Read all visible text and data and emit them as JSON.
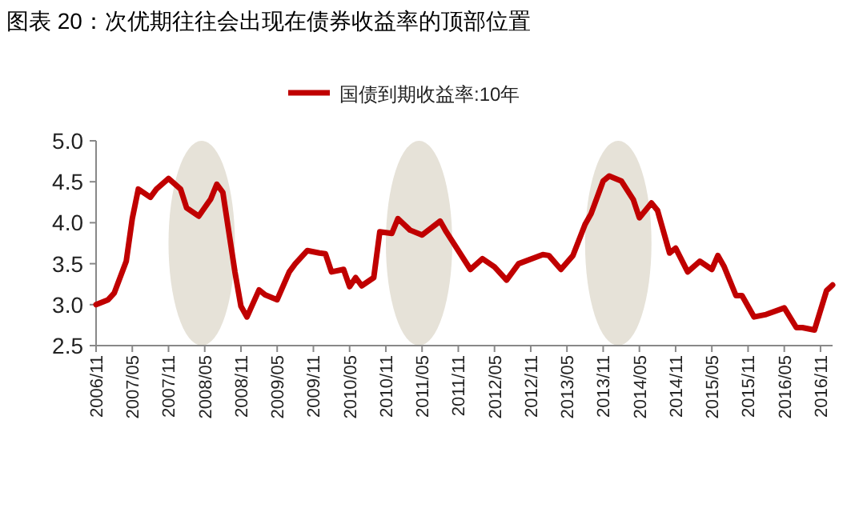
{
  "chart_data": {
    "type": "line",
    "title": "图表 20：次优期往往会出现在债券收益率的顶部位置",
    "x": [
      "2006-11",
      "2007-01",
      "2007-02",
      "2007-04",
      "2007-05",
      "2007-06",
      "2007-08",
      "2007-09",
      "2007-11",
      "2008-01",
      "2008-02",
      "2008-04",
      "2008-06",
      "2008-07",
      "2008-08",
      "2008-10",
      "2008-11",
      "2008-12",
      "2009-02",
      "2009-03",
      "2009-05",
      "2009-07",
      "2009-08",
      "2009-10",
      "2009-12",
      "2010-01",
      "2010-02",
      "2010-04",
      "2010-05",
      "2010-06",
      "2010-07",
      "2010-09",
      "2010-10",
      "2010-12",
      "2011-01",
      "2011-03",
      "2011-05",
      "2011-08",
      "2011-09",
      "2012-01",
      "2012-03",
      "2012-05",
      "2012-07",
      "2012-09",
      "2013-01",
      "2013-02",
      "2013-04",
      "2013-06",
      "2013-08",
      "2013-09",
      "2013-11",
      "2013-12",
      "2014-02",
      "2014-04",
      "2014-05",
      "2014-07",
      "2014-08",
      "2014-10",
      "2014-11",
      "2015-01",
      "2015-03",
      "2015-05",
      "2015-06",
      "2015-07",
      "2015-09",
      "2015-10",
      "2015-12",
      "2016-02",
      "2016-05",
      "2016-07",
      "2016-08",
      "2016-10",
      "2016-12",
      "2017-01"
    ],
    "series": [
      {
        "name": "国债到期收益率:10年",
        "color": "#c00000",
        "values": [
          3.0,
          3.06,
          3.14,
          3.53,
          4.05,
          4.41,
          4.31,
          4.41,
          4.54,
          4.41,
          4.18,
          4.08,
          4.29,
          4.47,
          4.37,
          3.4,
          2.98,
          2.85,
          3.18,
          3.12,
          3.06,
          3.4,
          3.5,
          3.66,
          3.63,
          3.62,
          3.4,
          3.43,
          3.22,
          3.33,
          3.23,
          3.33,
          3.89,
          3.87,
          4.05,
          3.91,
          3.85,
          4.02,
          3.89,
          3.43,
          3.56,
          3.46,
          3.3,
          3.5,
          3.61,
          3.6,
          3.43,
          3.6,
          3.98,
          4.11,
          4.51,
          4.57,
          4.51,
          4.28,
          4.06,
          4.24,
          4.15,
          3.63,
          3.69,
          3.4,
          3.53,
          3.43,
          3.6,
          3.47,
          3.11,
          3.11,
          2.85,
          2.88,
          2.96,
          2.72,
          2.72,
          2.69,
          3.17,
          3.24
        ]
      }
    ],
    "xlim": [
      "2006-11",
      "2017-01"
    ],
    "xticks": [
      {
        "value": "2006-11",
        "label": "2006/11"
      },
      {
        "value": "2007-05",
        "label": "2007/05"
      },
      {
        "value": "2007-11",
        "label": "2007/11"
      },
      {
        "value": "2008-05",
        "label": "2008/05"
      },
      {
        "value": "2008-11",
        "label": "2008/11"
      },
      {
        "value": "2009-05",
        "label": "2009/05"
      },
      {
        "value": "2009-11",
        "label": "2009/11"
      },
      {
        "value": "2010-05",
        "label": "2010/05"
      },
      {
        "value": "2010-11",
        "label": "2010/11"
      },
      {
        "value": "2011-05",
        "label": "2011/05"
      },
      {
        "value": "2011-11",
        "label": "2011/11"
      },
      {
        "value": "2012-05",
        "label": "2012/05"
      },
      {
        "value": "2012-11",
        "label": "2012/11"
      },
      {
        "value": "2013-05",
        "label": "2013/05"
      },
      {
        "value": "2013-11",
        "label": "2013/11"
      },
      {
        "value": "2014-05",
        "label": "2014/05"
      },
      {
        "value": "2014-11",
        "label": "2014/11"
      },
      {
        "value": "2015-05",
        "label": "2015/05"
      },
      {
        "value": "2015-11",
        "label": "2015/11"
      },
      {
        "value": "2016-05",
        "label": "2016/05"
      },
      {
        "value": "2016-11",
        "label": "2016/11"
      }
    ],
    "ylim": [
      2.5,
      5.0
    ],
    "yticks": [
      {
        "value": 2.5,
        "label": "2.5"
      },
      {
        "value": 3.0,
        "label": "3.0"
      },
      {
        "value": 3.5,
        "label": "3.5"
      },
      {
        "value": 4.0,
        "label": "4.0"
      },
      {
        "value": 4.5,
        "label": "4.5"
      },
      {
        "value": 5.0,
        "label": "5.0"
      }
    ],
    "bands": [
      {
        "axis": "x",
        "from": "2007-11",
        "to": "2008-10",
        "color": "#e6e2d8"
      },
      {
        "axis": "x",
        "from": "2010-11",
        "to": "2011-10",
        "color": "#e6e2d8"
      },
      {
        "axis": "x",
        "from": "2013-08",
        "to": "2014-07",
        "color": "#e6e2d8"
      }
    ],
    "legend": "top",
    "grid": false,
    "marker": "none",
    "line_style": "solid"
  }
}
